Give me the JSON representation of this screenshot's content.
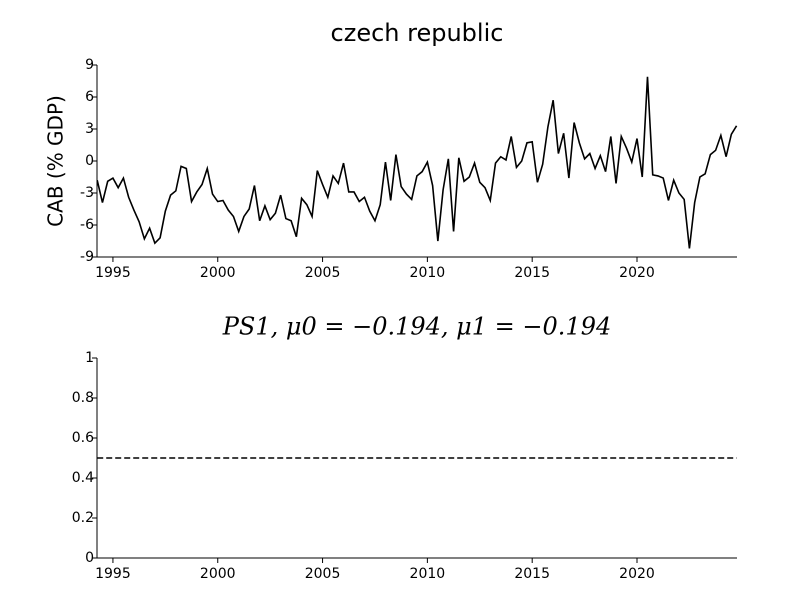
{
  "chart_data": [
    {
      "type": "line",
      "title": "czech republic",
      "y_label": "CAB (% GDP)",
      "x": [
        1994.25,
        1994.5,
        1994.75,
        1995,
        1995.25,
        1995.5,
        1995.75,
        1996,
        1996.25,
        1996.5,
        1996.75,
        1997,
        1997.25,
        1997.5,
        1997.75,
        1998,
        1998.25,
        1998.5,
        1998.75,
        1999,
        1999.25,
        1999.5,
        1999.75,
        2000,
        2000.25,
        2000.5,
        2000.75,
        2001,
        2001.25,
        2001.5,
        2001.75,
        2002,
        2002.25,
        2002.5,
        2002.75,
        2003,
        2003.25,
        2003.5,
        2003.75,
        2004,
        2004.25,
        2004.5,
        2004.75,
        2005,
        2005.25,
        2005.5,
        2005.75,
        2006,
        2006.25,
        2006.5,
        2006.75,
        2007,
        2007.25,
        2007.5,
        2007.75,
        2008,
        2008.25,
        2008.5,
        2008.75,
        2009,
        2009.25,
        2009.5,
        2009.75,
        2010,
        2010.25,
        2010.5,
        2010.75,
        2011,
        2011.25,
        2011.5,
        2011.75,
        2012,
        2012.25,
        2012.5,
        2012.75,
        2013,
        2013.25,
        2013.5,
        2013.75,
        2014,
        2014.25,
        2014.5,
        2014.75,
        2015,
        2015.25,
        2015.5,
        2015.75,
        2016,
        2016.25,
        2016.5,
        2016.75,
        2017,
        2017.25,
        2017.5,
        2017.75,
        2018,
        2018.25,
        2018.5,
        2018.75,
        2019,
        2019.25,
        2019.5,
        2019.75,
        2020,
        2020.25,
        2020.5,
        2020.75,
        2021,
        2021.25,
        2021.5,
        2021.75,
        2022,
        2022.25,
        2022.5,
        2022.75,
        2023,
        2023.25,
        2023.5,
        2023.75,
        2024,
        2024.25,
        2024.5,
        2024.75
      ],
      "series": [
        {
          "color": "#000000",
          "linestyle": "solid",
          "values": [
            -1.8,
            -3.9,
            -1.9,
            -1.6,
            -2.5,
            -1.6,
            -3.4,
            -4.6,
            -5.7,
            -7.3,
            -6.3,
            -7.7,
            -7.2,
            -4.7,
            -3.2,
            -2.8,
            -0.5,
            -0.7,
            -3.8,
            -2.9,
            -2.2,
            -0.7,
            -3.1,
            -3.8,
            -3.7,
            -4.6,
            -5.2,
            -6.6,
            -5.2,
            -4.5,
            -2.3,
            -5.6,
            -4.2,
            -5.5,
            -4.9,
            -3.2,
            -5.4,
            -5.6,
            -7.1,
            -3.5,
            -4.1,
            -5.2,
            -0.9,
            -2.2,
            -3.4,
            -1.4,
            -2.1,
            -0.2,
            -2.9,
            -2.9,
            -3.8,
            -3.4,
            -4.7,
            -5.6,
            -4.1,
            -0.1,
            -3.7,
            0.6,
            -2.4,
            -3.1,
            -3.6,
            -1.4,
            -1.0,
            -0.1,
            -2.3,
            -7.5,
            -2.7,
            0.2,
            -6.6,
            0.3,
            -1.9,
            -1.5,
            -0.2,
            -2.0,
            -2.5,
            -3.7,
            -0.2,
            0.4,
            0.1,
            2.3,
            -0.6,
            0.0,
            1.7,
            1.8,
            -2.0,
            -0.3,
            3.2,
            5.7,
            0.7,
            2.6,
            -1.6,
            3.6,
            1.7,
            0.2,
            0.7,
            -0.7,
            0.5,
            -1.0,
            2.3,
            -2.1,
            2.3,
            1.2,
            -0.1,
            2.1,
            -1.5,
            7.9,
            -1.3,
            -1.4,
            -1.6,
            -3.7,
            -1.8,
            -3.0,
            -3.6,
            -8.2,
            -3.9,
            -1.5,
            -1.2,
            0.6,
            1.0,
            2.4,
            0.4,
            2.5,
            3.3
          ]
        }
      ],
      "xlim": [
        1994.24,
        2024.77
      ],
      "xticks": [
        1995,
        2000,
        2005,
        2010,
        2015,
        2020
      ],
      "ylim": [
        -9,
        9
      ],
      "yticks": [
        -9,
        -6,
        -3,
        0,
        3,
        6,
        9
      ]
    },
    {
      "type": "line",
      "title": "PS1, μ0 = −0.194, μ1 = −0.194",
      "x": [
        1994.25,
        2024.75
      ],
      "series": [
        {
          "color": "#000000",
          "linestyle": "dashed",
          "values": [
            0.5,
            0.5
          ]
        }
      ],
      "xlim": [
        1994.24,
        2024.77
      ],
      "xticks": [
        1995,
        2000,
        2005,
        2010,
        2015,
        2020
      ],
      "ylim": [
        0,
        1
      ],
      "yticks": [
        0,
        0.2,
        0.4,
        0.6,
        0.8,
        1
      ]
    }
  ]
}
